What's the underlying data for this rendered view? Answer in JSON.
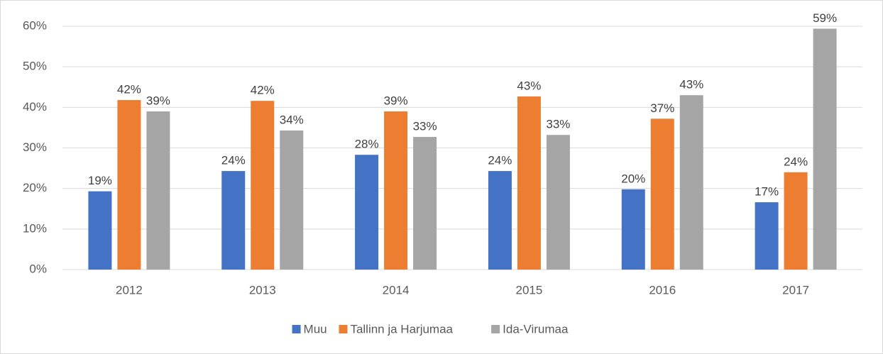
{
  "chart_data": {
    "type": "bar",
    "categories": [
      "2012",
      "2013",
      "2014",
      "2015",
      "2016",
      "2017"
    ],
    "series": [
      {
        "name": "Muu",
        "color": "#4472c4",
        "values": [
          19.3,
          24.3,
          28.3,
          24.3,
          19.8,
          16.6
        ],
        "value_labels": [
          "19%",
          "24%",
          "28%",
          "24%",
          "20%",
          "17%"
        ]
      },
      {
        "name": "Tallinn ja Harjumaa",
        "color": "#ed7d31",
        "values": [
          41.8,
          41.6,
          39.0,
          42.7,
          37.2,
          24.0
        ],
        "value_labels": [
          "42%",
          "42%",
          "39%",
          "43%",
          "37%",
          "24%"
        ]
      },
      {
        "name": "Ida-Virumaa",
        "color": "#a5a5a5",
        "values": [
          39.0,
          34.3,
          32.7,
          33.2,
          43.0,
          59.4
        ],
        "value_labels": [
          "39%",
          "34%",
          "33%",
          "33%",
          "43%",
          "59%"
        ]
      }
    ],
    "ylim": [
      0,
      60
    ],
    "yticks": [
      {
        "value": 0,
        "label": "0%"
      },
      {
        "value": 10,
        "label": "10%"
      },
      {
        "value": 20,
        "label": "20%"
      },
      {
        "value": 30,
        "label": "30%"
      },
      {
        "value": 40,
        "label": "40%"
      },
      {
        "value": 50,
        "label": "50%"
      },
      {
        "value": 60,
        "label": "60%"
      }
    ],
    "grid": true,
    "legend": "bottom"
  }
}
